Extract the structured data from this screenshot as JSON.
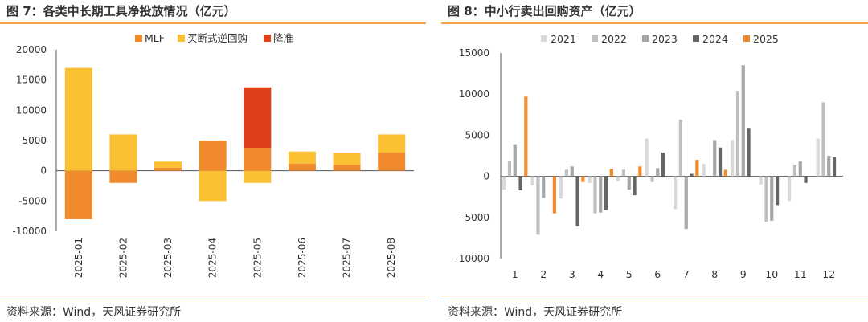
{
  "left": {
    "title": "图 7：各类中长期工具净投放情况（亿元）",
    "source": "资料来源：Wind，天风证券研究所"
  },
  "right": {
    "title": "图 8：中小行卖出回购资产（亿元）",
    "source": "资料来源：Wind，天风证券研究所"
  },
  "chart_data": [
    {
      "type": "bar",
      "stacked": true,
      "title": "各类中长期工具净投放情况（亿元）",
      "categories": [
        "2025-01",
        "2025-02",
        "2025-03",
        "2025-04",
        "2025-05",
        "2025-06",
        "2025-07",
        "2025-08"
      ],
      "series": [
        {
          "name": "MLF",
          "color": "#f08a2c",
          "values": [
            -8000,
            -2000,
            500,
            5000,
            3800,
            1180,
            1000,
            3000
          ]
        },
        {
          "name": "买断式逆回购",
          "color": "#fbbf32",
          "values": [
            17000,
            6000,
            1000,
            -5000,
            -2000,
            2000,
            2000,
            3000
          ]
        },
        {
          "name": "降准",
          "color": "#e03f1c",
          "values": [
            0,
            0,
            0,
            0,
            10000,
            0,
            0,
            0
          ]
        }
      ],
      "yticks": [
        -10000,
        -5000,
        0,
        5000,
        10000,
        15000,
        20000
      ],
      "ylim": [
        -10000,
        20000
      ],
      "legend": "top",
      "grid": false
    },
    {
      "type": "bar",
      "title": "中小行卖出回购资产（亿元）",
      "categories": [
        "1",
        "2",
        "3",
        "4",
        "5",
        "6",
        "7",
        "8",
        "9",
        "10",
        "11",
        "12"
      ],
      "series": [
        {
          "name": "2021",
          "color": "#d9d9d9",
          "values": [
            -1600,
            -1100,
            -2700,
            -800,
            -600,
            4600,
            -4000,
            1500,
            4400,
            -1000,
            -3000,
            4600
          ]
        },
        {
          "name": "2022",
          "color": "#bfbfbf",
          "values": [
            1900,
            -7100,
            800,
            -4500,
            800,
            -700,
            6900,
            0,
            10400,
            -5500,
            1400,
            9000
          ]
        },
        {
          "name": "2023",
          "color": "#a6a6a6",
          "values": [
            3900,
            -2600,
            1200,
            -4400,
            -1600,
            1000,
            -6400,
            4400,
            13500,
            -5400,
            1800,
            2500
          ]
        },
        {
          "name": "2024",
          "color": "#666666",
          "values": [
            -1700,
            0,
            -6100,
            -4100,
            -2300,
            2900,
            300,
            3500,
            5800,
            -3500,
            -800,
            2300
          ]
        },
        {
          "name": "2025",
          "color": "#f08a2c",
          "values": [
            9700,
            -4500,
            -700,
            900,
            1200,
            0,
            2000,
            800,
            null,
            null,
            null,
            null
          ]
        }
      ],
      "yticks": [
        -10000,
        -5000,
        0,
        5000,
        10000,
        15000
      ],
      "ylim": [
        -10000,
        15000
      ],
      "legend": "top",
      "grid": false
    }
  ]
}
